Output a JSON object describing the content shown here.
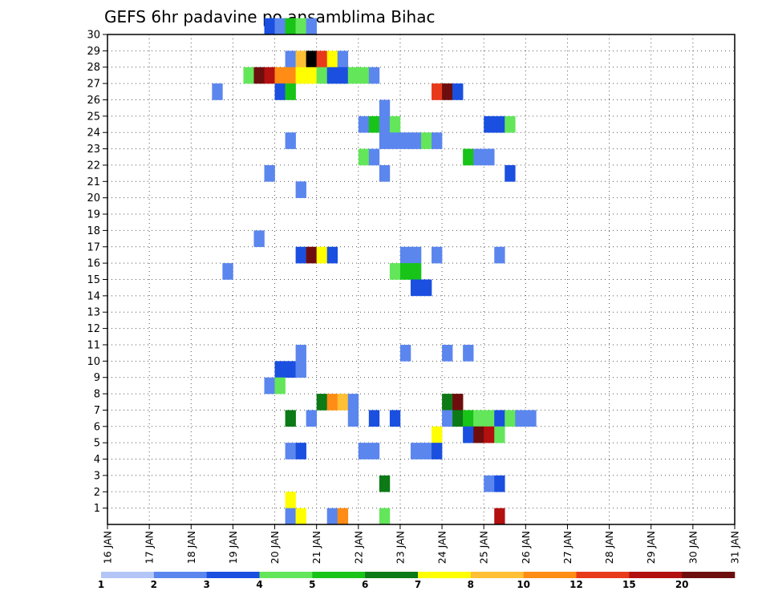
{
  "chart_data": {
    "type": "heatmap",
    "title": "GEFS 6hr padavine po ansamblima Bihac",
    "xlabel": "",
    "ylabel": "",
    "x_ticks": [
      "16 JAN",
      "17 JAN",
      "18 JAN",
      "19 JAN",
      "20 JAN",
      "21 JAN",
      "22 JAN",
      "23 JAN",
      "24 JAN",
      "25 JAN",
      "26 JAN",
      "27 JAN",
      "28 JAN",
      "29 JAN",
      "30 JAN",
      "31 JAN"
    ],
    "x_range": [
      0,
      60
    ],
    "y_ticks": [
      1,
      2,
      3,
      4,
      5,
      6,
      7,
      8,
      9,
      10,
      11,
      12,
      13,
      14,
      15,
      16,
      17,
      18,
      19,
      20,
      21,
      22,
      23,
      24,
      25,
      26,
      27,
      28,
      29,
      30
    ],
    "y_range": [
      0,
      30
    ],
    "grid": true,
    "colorbar": {
      "labels": [
        "1",
        "2",
        "3",
        "4",
        "5",
        "6",
        "7",
        "8",
        "10",
        "12",
        "15",
        "20"
      ],
      "colors": [
        "#b3c6f7",
        "#5b86ee",
        "#1a4fe0",
        "#63e65a",
        "#17c417",
        "#0c7a16",
        "#ffff00",
        "#ffc035",
        "#ff8c14",
        "#e8391a",
        "#b31010",
        "#6e0d0d"
      ]
    },
    "cells": [
      [
        30,
        15,
        2
      ],
      [
        30,
        16,
        1
      ],
      [
        30,
        17,
        4
      ],
      [
        30,
        18,
        3
      ],
      [
        30,
        19,
        1
      ],
      [
        28,
        17,
        1
      ],
      [
        28,
        18,
        7
      ],
      [
        28,
        19,
        12
      ],
      [
        28,
        20,
        9
      ],
      [
        28,
        21,
        6
      ],
      [
        28,
        22,
        1
      ],
      [
        27,
        13,
        3
      ],
      [
        27,
        14,
        11
      ],
      [
        27,
        15,
        10
      ],
      [
        27,
        16,
        8
      ],
      [
        27,
        17,
        8
      ],
      [
        27,
        18,
        6
      ],
      [
        27,
        19,
        6
      ],
      [
        27,
        20,
        3
      ],
      [
        27,
        21,
        2
      ],
      [
        27,
        22,
        2
      ],
      [
        27,
        23,
        3
      ],
      [
        27,
        24,
        3
      ],
      [
        27,
        25,
        1
      ],
      [
        26,
        10,
        1
      ],
      [
        26,
        16,
        2
      ],
      [
        26,
        17,
        4
      ],
      [
        26,
        31,
        9
      ],
      [
        26,
        32,
        11
      ],
      [
        26,
        33,
        2
      ],
      [
        25,
        26,
        1
      ],
      [
        24,
        24,
        1
      ],
      [
        24,
        25,
        4
      ],
      [
        24,
        26,
        1
      ],
      [
        24,
        27,
        3
      ],
      [
        24,
        36,
        2
      ],
      [
        24,
        37,
        2
      ],
      [
        24,
        38,
        3
      ],
      [
        23,
        17,
        1
      ],
      [
        23,
        26,
        1
      ],
      [
        23,
        27,
        1
      ],
      [
        23,
        28,
        1
      ],
      [
        23,
        29,
        1
      ],
      [
        23,
        30,
        3
      ],
      [
        23,
        31,
        1
      ],
      [
        22,
        24,
        3
      ],
      [
        22,
        25,
        1
      ],
      [
        22,
        34,
        4
      ],
      [
        22,
        35,
        1
      ],
      [
        22,
        36,
        1
      ],
      [
        21,
        15,
        1
      ],
      [
        21,
        26,
        1
      ],
      [
        21,
        38,
        2
      ],
      [
        20,
        18,
        1
      ],
      [
        17,
        14,
        1
      ],
      [
        16,
        18,
        2
      ],
      [
        16,
        19,
        11
      ],
      [
        16,
        20,
        6
      ],
      [
        16,
        21,
        2
      ],
      [
        16,
        28,
        1
      ],
      [
        16,
        29,
        1
      ],
      [
        16,
        31,
        1
      ],
      [
        16,
        37,
        1
      ],
      [
        15,
        11,
        1
      ],
      [
        15,
        27,
        3
      ],
      [
        15,
        28,
        4
      ],
      [
        15,
        29,
        4
      ],
      [
        14,
        29,
        2
      ],
      [
        14,
        30,
        2
      ],
      [
        10,
        18,
        1
      ],
      [
        10,
        28,
        1
      ],
      [
        10,
        32,
        1
      ],
      [
        10,
        34,
        1
      ],
      [
        9,
        16,
        2
      ],
      [
        9,
        17,
        2
      ],
      [
        9,
        18,
        1
      ],
      [
        8,
        15,
        1
      ],
      [
        8,
        16,
        3
      ],
      [
        7,
        20,
        5
      ],
      [
        7,
        21,
        8
      ],
      [
        7,
        22,
        7
      ],
      [
        7,
        23,
        1
      ],
      [
        7,
        32,
        5
      ],
      [
        7,
        33,
        11
      ],
      [
        6,
        17,
        5
      ],
      [
        6,
        19,
        1
      ],
      [
        6,
        23,
        1
      ],
      [
        6,
        25,
        2
      ],
      [
        6,
        27,
        2
      ],
      [
        6,
        32,
        1
      ],
      [
        6,
        33,
        5
      ],
      [
        6,
        34,
        4
      ],
      [
        6,
        35,
        3
      ],
      [
        6,
        36,
        3
      ],
      [
        6,
        37,
        2
      ],
      [
        6,
        38,
        3
      ],
      [
        6,
        39,
        1
      ],
      [
        6,
        40,
        1
      ],
      [
        5,
        31,
        6
      ],
      [
        5,
        34,
        2
      ],
      [
        5,
        35,
        11
      ],
      [
        5,
        36,
        10
      ],
      [
        5,
        37,
        3
      ],
      [
        4,
        17,
        1
      ],
      [
        4,
        18,
        2
      ],
      [
        4,
        24,
        1
      ],
      [
        4,
        25,
        1
      ],
      [
        4,
        29,
        1
      ],
      [
        4,
        30,
        1
      ],
      [
        4,
        31,
        2
      ],
      [
        2,
        26,
        5
      ],
      [
        2,
        36,
        1
      ],
      [
        2,
        37,
        2
      ],
      [
        1,
        17,
        6
      ],
      [
        0,
        17,
        1
      ],
      [
        0,
        18,
        6
      ],
      [
        0,
        21,
        1
      ],
      [
        0,
        22,
        8
      ],
      [
        0,
        26,
        3
      ],
      [
        0,
        37,
        10
      ]
    ]
  }
}
